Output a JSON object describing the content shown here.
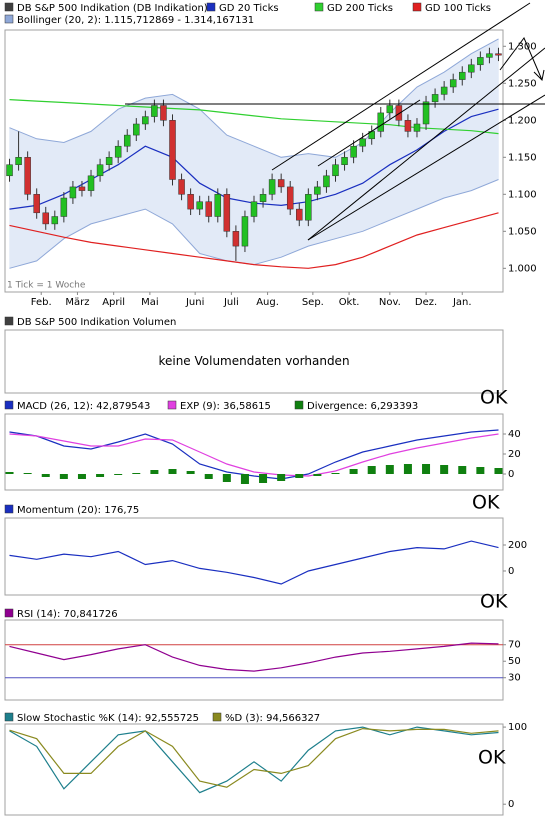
{
  "chart_data": [
    {
      "type": "candlestick",
      "candles": {
        "name": "DB S&P 500 Indikation (DB Indikation)",
        "color": "#404040",
        "color_up": "#22c022",
        "color_down": "#d03030",
        "open": [
          1125,
          1140,
          1150,
          1100,
          1075,
          1060,
          1070,
          1095,
          1110,
          1105,
          1125,
          1140,
          1150,
          1165,
          1180,
          1195,
          1205,
          1220,
          1200,
          1120,
          1100,
          1080,
          1090,
          1070,
          1100,
          1050,
          1030,
          1070,
          1090,
          1100,
          1120,
          1110,
          1080,
          1065,
          1100,
          1110,
          1125,
          1140,
          1150,
          1165,
          1175,
          1185,
          1210,
          1220,
          1200,
          1185,
          1195,
          1225,
          1235,
          1245,
          1255,
          1265,
          1275,
          1285,
          1290
        ],
        "high": [
          1148,
          1185,
          1158,
          1108,
          1083,
          1078,
          1103,
          1118,
          1118,
          1133,
          1148,
          1158,
          1173,
          1188,
          1203,
          1213,
          1228,
          1228,
          1208,
          1128,
          1108,
          1098,
          1098,
          1108,
          1108,
          1058,
          1078,
          1098,
          1108,
          1128,
          1128,
          1118,
          1088,
          1108,
          1118,
          1133,
          1148,
          1158,
          1173,
          1183,
          1193,
          1218,
          1228,
          1228,
          1208,
          1203,
          1233,
          1243,
          1253,
          1263,
          1273,
          1283,
          1293,
          1298,
          1298
        ],
        "low": [
          1117,
          1132,
          1092,
          1067,
          1052,
          1052,
          1062,
          1087,
          1097,
          1097,
          1117,
          1132,
          1142,
          1157,
          1172,
          1187,
          1197,
          1192,
          1112,
          1092,
          1072,
          1072,
          1062,
          1062,
          1042,
          1010,
          1022,
          1062,
          1082,
          1092,
          1102,
          1072,
          1057,
          1057,
          1092,
          1102,
          1117,
          1132,
          1142,
          1157,
          1167,
          1177,
          1202,
          1192,
          1177,
          1177,
          1187,
          1217,
          1227,
          1237,
          1247,
          1257,
          1267,
          1277,
          1280
        ],
        "close": [
          1140,
          1150,
          1100,
          1075,
          1060,
          1070,
          1095,
          1110,
          1105,
          1125,
          1140,
          1150,
          1165,
          1180,
          1195,
          1205,
          1220,
          1200,
          1120,
          1100,
          1080,
          1090,
          1070,
          1100,
          1050,
          1030,
          1070,
          1090,
          1100,
          1120,
          1110,
          1080,
          1065,
          1100,
          1110,
          1125,
          1140,
          1150,
          1165,
          1175,
          1185,
          1210,
          1220,
          1200,
          1185,
          1195,
          1225,
          1235,
          1245,
          1255,
          1265,
          1275,
          1285,
          1290,
          1288
        ]
      },
      "lines": [
        {
          "name": "GD 20 Ticks",
          "color": "#1a2fc0",
          "x": [
            0,
            3,
            6,
            9,
            12,
            15,
            18,
            21,
            24,
            27,
            30,
            33,
            36,
            39,
            42,
            45,
            48,
            51,
            54
          ],
          "values": [
            1080,
            1085,
            1100,
            1120,
            1140,
            1165,
            1150,
            1115,
            1095,
            1088,
            1085,
            1090,
            1100,
            1115,
            1140,
            1160,
            1185,
            1205,
            1215
          ]
        },
        {
          "name": "GD 200 Ticks",
          "color": "#30d030",
          "x": [
            0,
            3,
            6,
            9,
            12,
            15,
            18,
            21,
            24,
            27,
            30,
            33,
            36,
            39,
            42,
            45,
            48,
            51,
            54
          ],
          "values": [
            1228,
            1226,
            1224,
            1222,
            1220,
            1218,
            1216,
            1214,
            1210,
            1206,
            1202,
            1200,
            1198,
            1196,
            1194,
            1190,
            1188,
            1186,
            1182
          ]
        },
        {
          "name": "GD 100 Ticks",
          "color": "#e02020",
          "x": [
            0,
            3,
            6,
            9,
            12,
            15,
            18,
            21,
            24,
            27,
            30,
            33,
            36,
            39,
            42,
            45,
            48,
            51,
            54
          ],
          "values": [
            1058,
            1050,
            1042,
            1035,
            1030,
            1025,
            1020,
            1015,
            1010,
            1005,
            1002,
            1000,
            1005,
            1015,
            1030,
            1045,
            1055,
            1065,
            1075
          ]
        }
      ],
      "bollinger": {
        "name": "Bollinger (20, 2): 1.115,712869 - 1.314,167131",
        "color": "#8fa8d8",
        "fill": "#e2eaf7",
        "x": [
          0,
          3,
          6,
          9,
          12,
          15,
          18,
          21,
          24,
          27,
          30,
          33,
          36,
          39,
          42,
          45,
          48,
          51,
          54
        ],
        "upper": [
          1190,
          1175,
          1170,
          1185,
          1215,
          1230,
          1235,
          1215,
          1180,
          1165,
          1150,
          1155,
          1150,
          1170,
          1210,
          1245,
          1265,
          1290,
          1310
        ],
        "lower": [
          1000,
          1010,
          1040,
          1060,
          1070,
          1080,
          1060,
          1020,
          1010,
          1005,
          1015,
          1030,
          1040,
          1050,
          1065,
          1080,
          1095,
          1105,
          1120
        ]
      },
      "xlim": [
        -0.5,
        54.5
      ],
      "xticks": [
        {
          "value": 3.5,
          "label": "Feb."
        },
        {
          "value": 7.5,
          "label": "März"
        },
        {
          "value": 11.5,
          "label": "April"
        },
        {
          "value": 15.5,
          "label": "Mai"
        },
        {
          "value": 20.5,
          "label": "Juni"
        },
        {
          "value": 24.5,
          "label": "Juli"
        },
        {
          "value": 28.5,
          "label": "Aug."
        },
        {
          "value": 33.5,
          "label": "Sep."
        },
        {
          "value": 37.5,
          "label": "Okt."
        },
        {
          "value": 42,
          "label": "Nov."
        },
        {
          "value": 46,
          "label": "Dez."
        },
        {
          "value": 50,
          "label": "Jan."
        }
      ],
      "ylim": [
        968,
        1322
      ],
      "yticks": [
        {
          "value": 1000,
          "label": "1.000"
        },
        {
          "value": 1050,
          "label": "1.050"
        },
        {
          "value": 1100,
          "label": "1.100"
        },
        {
          "value": 1150,
          "label": "1.150"
        },
        {
          "value": 1200,
          "label": "1.200"
        },
        {
          "value": 1250,
          "label": "1.250"
        },
        {
          "value": 1300,
          "label": "1.300"
        }
      ],
      "note": "1 Tick = 1 Woche"
    },
    {
      "type": "empty",
      "title": "DB S&P 500 Indikation Volumen",
      "color": "#404040",
      "message": "keine Volumendaten vorhanden"
    },
    {
      "type": "line",
      "annotation": "OK",
      "xlim": [
        -0.5,
        54.5
      ],
      "ylim": [
        -16,
        60
      ],
      "yticks": [
        0,
        20,
        40
      ],
      "series": [
        {
          "name": "MACD (26, 12): 42,879543",
          "color": "#1a2fc0",
          "x": [
            0,
            3,
            6,
            9,
            12,
            15,
            18,
            21,
            24,
            27,
            30,
            33,
            36,
            39,
            42,
            45,
            48,
            51,
            54
          ],
          "values": [
            42,
            38,
            28,
            25,
            32,
            40,
            30,
            10,
            2,
            -2,
            -5,
            0,
            12,
            22,
            28,
            34,
            38,
            42,
            44
          ]
        },
        {
          "name": "EXP (9): 36,58615",
          "color": "#e040e0",
          "x": [
            0,
            3,
            6,
            9,
            12,
            15,
            18,
            21,
            24,
            27,
            30,
            33,
            36,
            39,
            42,
            45,
            48,
            51,
            54
          ],
          "values": [
            40,
            38,
            33,
            28,
            28,
            35,
            34,
            22,
            10,
            2,
            -1,
            -2,
            3,
            12,
            20,
            26,
            31,
            36,
            40
          ]
        },
        {
          "name": "Divergence: 6,293393",
          "color": "#108010",
          "style": "bar",
          "x": [
            0,
            2,
            4,
            6,
            8,
            10,
            12,
            14,
            16,
            18,
            20,
            22,
            24,
            26,
            28,
            30,
            32,
            34,
            36,
            38,
            40,
            42,
            44,
            46,
            48,
            50,
            52,
            54
          ],
          "values": [
            2,
            1,
            -3,
            -5,
            -5,
            -3,
            -1,
            1,
            4,
            5,
            3,
            -5,
            -8,
            -10,
            -9,
            -7,
            -4,
            -2,
            1,
            5,
            8,
            9,
            10,
            10,
            9,
            8,
            7,
            6
          ]
        }
      ]
    },
    {
      "type": "line",
      "annotation": "OK",
      "xlim": [
        -0.5,
        54.5
      ],
      "ylim": [
        -185,
        408
      ],
      "yticks": [
        0,
        200
      ],
      "series": [
        {
          "name": "Momentum (20): 176,75",
          "color": "#1a2fc0",
          "x": [
            0,
            3,
            6,
            9,
            12,
            15,
            18,
            21,
            24,
            27,
            30,
            33,
            36,
            39,
            42,
            45,
            48,
            51,
            54
          ],
          "values": [
            120,
            90,
            130,
            110,
            150,
            50,
            80,
            20,
            -10,
            -50,
            -100,
            0,
            50,
            100,
            150,
            180,
            170,
            230,
            180
          ]
        }
      ]
    },
    {
      "type": "line",
      "annotation": "OK",
      "xlim": [
        -0.5,
        54.5
      ],
      "ylim": [
        3,
        100
      ],
      "yticks": [
        30,
        50,
        70
      ],
      "hlines": [
        {
          "value": 70,
          "color": "#d04040"
        },
        {
          "value": 30,
          "color": "#5050c0"
        }
      ],
      "series": [
        {
          "name": "RSI (14): 70,841726",
          "color": "#900090",
          "x": [
            0,
            3,
            6,
            9,
            12,
            15,
            18,
            21,
            24,
            27,
            30,
            33,
            36,
            39,
            42,
            45,
            48,
            51,
            54
          ],
          "values": [
            68,
            60,
            52,
            58,
            65,
            70,
            55,
            45,
            40,
            38,
            42,
            48,
            55,
            60,
            62,
            65,
            68,
            72,
            71
          ]
        }
      ]
    },
    {
      "type": "line",
      "annotation": "OK",
      "xlim": [
        -0.5,
        54.5
      ],
      "ylim": [
        -14,
        104
      ],
      "yticks": [
        0,
        100
      ],
      "series": [
        {
          "name": "Slow Stochastic %K (14): 92,555725",
          "color": "#1e7f8c",
          "x": [
            0,
            3,
            6,
            9,
            12,
            15,
            18,
            21,
            24,
            27,
            30,
            33,
            36,
            39,
            42,
            45,
            48,
            51,
            54
          ],
          "values": [
            95,
            75,
            20,
            55,
            90,
            95,
            55,
            15,
            30,
            55,
            30,
            70,
            95,
            100,
            90,
            100,
            95,
            90,
            93
          ]
        },
        {
          "name": "%D (3): 94,566327",
          "color": "#8a8a20",
          "x": [
            0,
            3,
            6,
            9,
            12,
            15,
            18,
            21,
            24,
            27,
            30,
            33,
            36,
            39,
            42,
            45,
            48,
            51,
            54
          ],
          "values": [
            96,
            85,
            40,
            40,
            75,
            95,
            75,
            30,
            22,
            45,
            40,
            50,
            85,
            98,
            95,
            97,
            97,
            92,
            95
          ]
        }
      ]
    }
  ]
}
